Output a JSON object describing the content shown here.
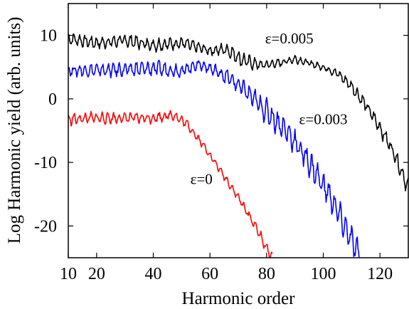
{
  "chart_data": {
    "type": "line",
    "xlabel": "Harmonic order",
    "ylabel": "Log Harmonic yield (arb. units)",
    "xlim": [
      10,
      130
    ],
    "ylim": [
      -25,
      15
    ],
    "xticks": [
      10,
      20,
      40,
      60,
      80,
      100,
      120
    ],
    "yticks": [
      -20,
      -10,
      0,
      10
    ],
    "grid": false,
    "series": [
      {
        "name": "ε=0.005",
        "color": "#000000",
        "label_at": [
          88,
          8.7
        ],
        "control": [
          [
            10,
            9.5
          ],
          [
            20,
            8.8
          ],
          [
            30,
            9.2
          ],
          [
            40,
            8.5
          ],
          [
            50,
            8.8
          ],
          [
            60,
            7.6
          ],
          [
            66,
            7.8
          ],
          [
            72,
            6.0
          ],
          [
            78,
            5.3
          ],
          [
            84,
            5.6
          ],
          [
            90,
            6.3
          ],
          [
            95,
            5.6
          ],
          [
            100,
            5.0
          ],
          [
            105,
            4.0
          ],
          [
            110,
            2.0
          ],
          [
            115,
            -1.0
          ],
          [
            120,
            -4.5
          ],
          [
            125,
            -8.5
          ],
          [
            130,
            -14.0
          ]
        ],
        "osc_amp": [
          [
            10,
            0.9
          ],
          [
            40,
            1.0
          ],
          [
            60,
            0.8
          ],
          [
            72,
            1.2
          ],
          [
            80,
            0.7
          ],
          [
            100,
            0.5
          ],
          [
            110,
            0.9
          ],
          [
            120,
            1.1
          ],
          [
            130,
            1.3
          ]
        ]
      },
      {
        "name": "ε=0.003",
        "color": "#0000ff",
        "label_at": [
          100,
          -4.0
        ],
        "control": [
          [
            10,
            4.5
          ],
          [
            20,
            4.5
          ],
          [
            30,
            4.6
          ],
          [
            40,
            4.8
          ],
          [
            50,
            4.4
          ],
          [
            56,
            5.5
          ],
          [
            60,
            4.8
          ],
          [
            66,
            3.5
          ],
          [
            72,
            1.5
          ],
          [
            80,
            -2.0
          ],
          [
            88,
            -5.5
          ],
          [
            95,
            -10.0
          ],
          [
            102,
            -15.0
          ],
          [
            108,
            -20.5
          ],
          [
            113,
            -25.0
          ]
        ],
        "osc_amp": [
          [
            10,
            0.9
          ],
          [
            40,
            1.2
          ],
          [
            60,
            0.9
          ],
          [
            70,
            1.3
          ],
          [
            80,
            1.8
          ],
          [
            100,
            2.0
          ],
          [
            113,
            2.0
          ]
        ]
      },
      {
        "name": "ε=0",
        "color": "#ff0000",
        "label_at": [
          57,
          -13.4
        ],
        "control": [
          [
            10,
            -3.2
          ],
          [
            20,
            -3.0
          ],
          [
            30,
            -3.0
          ],
          [
            40,
            -3.0
          ],
          [
            47,
            -2.5
          ],
          [
            52,
            -4.0
          ],
          [
            58,
            -7.5
          ],
          [
            64,
            -11.5
          ],
          [
            70,
            -15.5
          ],
          [
            76,
            -20.0
          ],
          [
            80,
            -23.5
          ],
          [
            82,
            -25.0
          ]
        ],
        "osc_amp": [
          [
            10,
            0.9
          ],
          [
            45,
            0.8
          ],
          [
            60,
            0.5
          ],
          [
            82,
            0.8
          ]
        ]
      }
    ]
  }
}
